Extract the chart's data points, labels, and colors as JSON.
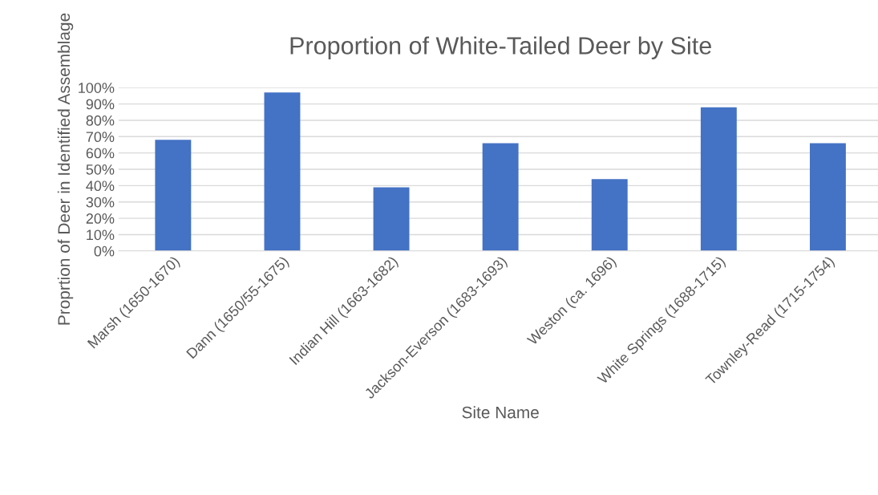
{
  "chart_data": {
    "type": "bar",
    "title": "Proportion of White-Tailed Deer by Site",
    "xlabel": "Site Name",
    "ylabel": "Proprtion of Deer in Identified Assemblage",
    "categories": [
      "Marsh (1650-1670)",
      "Dann (1650/55-1675)",
      "Indian Hill (1663-1682)",
      "Jackson-Everson (1683-1693)",
      "Weston (ca. 1696)",
      "White Springs (1688-1715)",
      "Townley-Read (1715-1754)"
    ],
    "values": [
      68,
      97,
      39,
      66,
      44,
      88,
      66
    ],
    "color": "#4472c4",
    "ylim": [
      0,
      100
    ],
    "yticks": [
      {
        "value": 0,
        "label": "0%"
      },
      {
        "value": 10,
        "label": "10%"
      },
      {
        "value": 20,
        "label": "20%"
      },
      {
        "value": 30,
        "label": "30%"
      },
      {
        "value": 40,
        "label": "40%"
      },
      {
        "value": 50,
        "label": "50%"
      },
      {
        "value": 60,
        "label": "60%"
      },
      {
        "value": 70,
        "label": "70%"
      },
      {
        "value": 80,
        "label": "80%"
      },
      {
        "value": 90,
        "label": "90%"
      },
      {
        "value": 100,
        "label": "100%"
      }
    ],
    "grid": "y"
  }
}
